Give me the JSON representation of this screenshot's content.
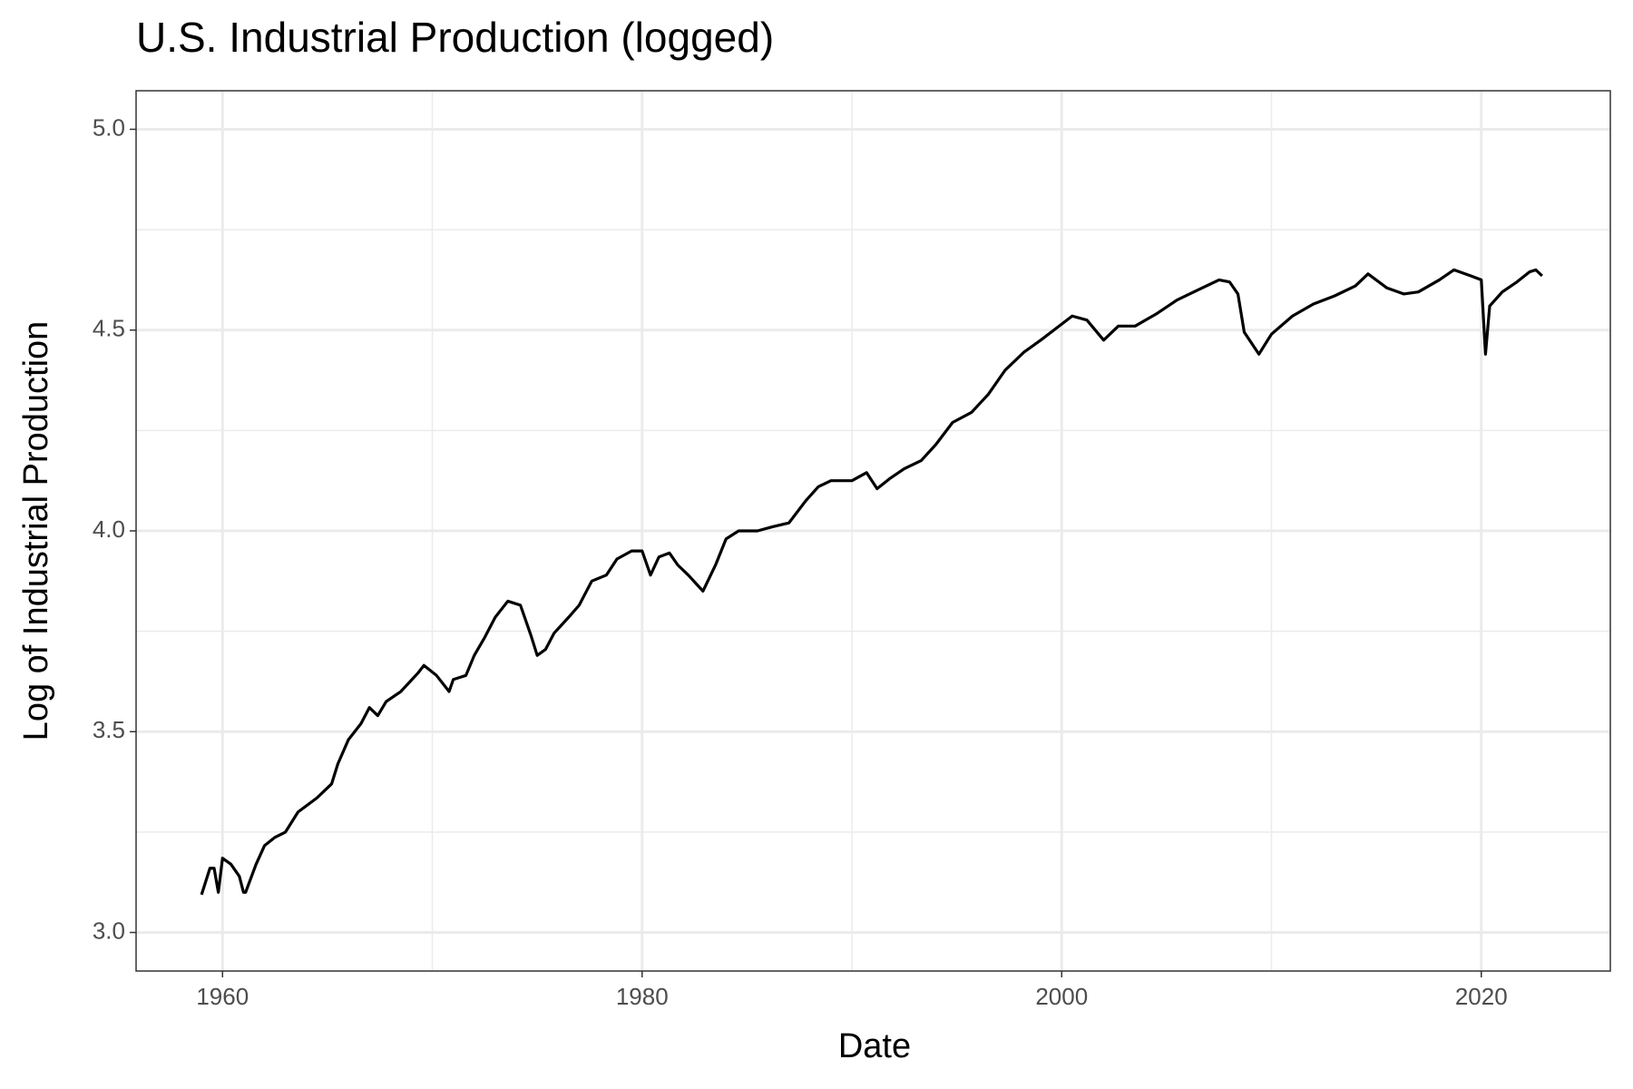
{
  "chart_data": {
    "type": "line",
    "title": "U.S. Industrial Production (logged)",
    "x_label": "Date",
    "y_label": "Log of Industrial Production",
    "x": [
      1959.0,
      1959.4,
      1959.6,
      1959.8,
      1960.0,
      1960.4,
      1960.8,
      1961.0,
      1961.1,
      1961.6,
      1962.0,
      1962.5,
      1963.0,
      1963.6,
      1964.5,
      1965.2,
      1965.5,
      1966.0,
      1966.6,
      1967.0,
      1967.4,
      1967.8,
      1968.5,
      1969.3,
      1969.6,
      1970.2,
      1970.8,
      1971.0,
      1971.6,
      1972.0,
      1972.5,
      1973.0,
      1973.6,
      1974.2,
      1974.7,
      1975.0,
      1975.4,
      1975.8,
      1976.5,
      1977.0,
      1977.6,
      1978.3,
      1978.8,
      1979.5,
      1980.0,
      1980.4,
      1980.8,
      1981.3,
      1981.7,
      1982.2,
      1982.9,
      1983.5,
      1984.0,
      1984.6,
      1985.5,
      1986.2,
      1987.0,
      1987.8,
      1988.4,
      1989.0,
      1990.0,
      1990.7,
      1991.2,
      1991.8,
      1992.5,
      1993.3,
      1994.0,
      1994.8,
      1995.7,
      1996.5,
      1997.3,
      1998.2,
      1999.0,
      2000.0,
      2000.5,
      2001.2,
      2002.0,
      2002.7,
      2003.5,
      2004.5,
      2005.5,
      2006.5,
      2007.5,
      2008.0,
      2008.4,
      2008.7,
      2009.4,
      2010.0,
      2011.0,
      2012.0,
      2013.0,
      2014.0,
      2014.6,
      2015.5,
      2016.3,
      2017.0,
      2018.0,
      2018.7,
      2019.5,
      2020.0,
      2020.2,
      2020.4,
      2021.0,
      2021.7,
      2022.3,
      2022.6,
      2022.9
    ],
    "values": [
      3.094,
      3.16,
      3.16,
      3.1,
      3.185,
      3.17,
      3.14,
      3.1,
      3.1,
      3.17,
      3.216,
      3.237,
      3.25,
      3.3,
      3.335,
      3.37,
      3.42,
      3.48,
      3.52,
      3.56,
      3.54,
      3.575,
      3.6,
      3.645,
      3.665,
      3.64,
      3.6,
      3.63,
      3.64,
      3.69,
      3.735,
      3.785,
      3.825,
      3.815,
      3.74,
      3.69,
      3.705,
      3.745,
      3.785,
      3.815,
      3.875,
      3.89,
      3.93,
      3.95,
      3.95,
      3.89,
      3.935,
      3.945,
      3.915,
      3.89,
      3.85,
      3.915,
      3.98,
      4.0,
      4.0,
      4.01,
      4.02,
      4.075,
      4.11,
      4.125,
      4.125,
      4.145,
      4.105,
      4.13,
      4.155,
      4.175,
      4.215,
      4.27,
      4.295,
      4.34,
      4.4,
      4.445,
      4.475,
      4.515,
      4.535,
      4.525,
      4.475,
      4.51,
      4.51,
      4.54,
      4.575,
      4.6,
      4.625,
      4.62,
      4.59,
      4.495,
      4.44,
      4.49,
      4.535,
      4.565,
      4.585,
      4.61,
      4.64,
      4.605,
      4.59,
      4.595,
      4.625,
      4.65,
      4.635,
      4.625,
      4.44,
      4.56,
      4.595,
      4.62,
      4.645,
      4.65,
      4.635
    ],
    "color": "#000000",
    "xlim": [
      1955.88,
      2026.15
    ],
    "xticks": [
      1960,
      1980,
      2000,
      2020
    ],
    "xminor": [
      1970,
      1990,
      2010
    ],
    "ylim": [
      2.904,
      5.096
    ],
    "yticks": [
      {
        "value": 3,
        "label": "3.0"
      },
      {
        "value": 3.5,
        "label": "3.5"
      },
      {
        "value": 4,
        "label": "4.0"
      },
      {
        "value": 4.5,
        "label": "4.5"
      },
      {
        "value": 5,
        "label": "5.0"
      }
    ],
    "yminor": [
      3.25,
      3.75,
      4.25,
      4.75
    ],
    "grid": true
  }
}
